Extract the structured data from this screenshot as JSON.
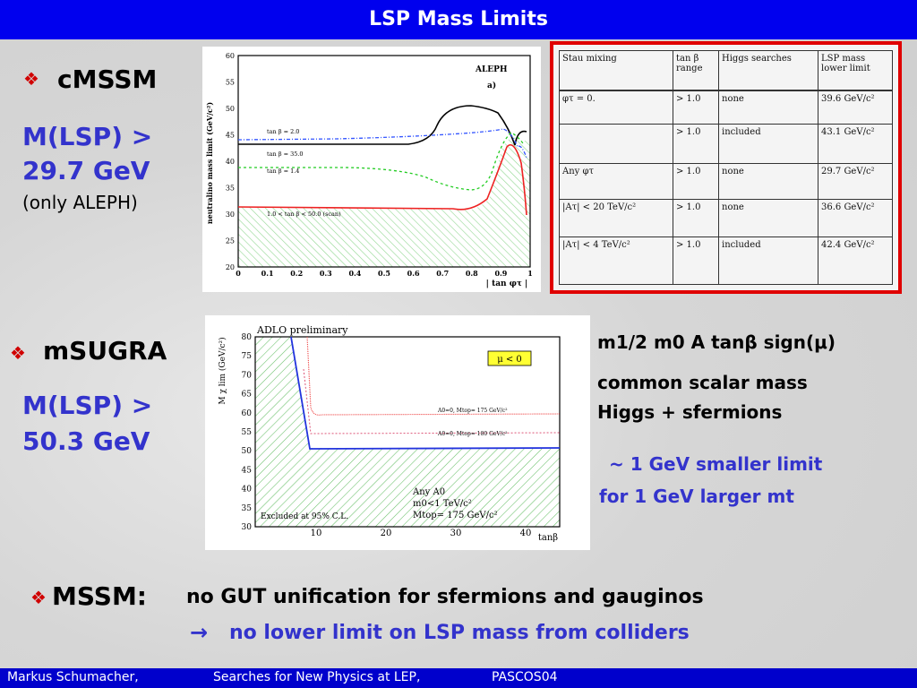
{
  "title": "LSP Mass Limits",
  "cmssm": {
    "label": "cMSSM",
    "limit_line1": "M(LSP) >",
    "limit_line2": "29.7 GeV",
    "note": "(only ALEPH)"
  },
  "msugra": {
    "label": "mSUGRA",
    "limit_line1": "M(LSP) >",
    "limit_line2": "50.3 GeV"
  },
  "params": {
    "line1": "m1/2  m0  A  tanβ sign(μ)",
    "line2": "common scalar mass",
    "line3": "Higgs + sfermions"
  },
  "shift": {
    "line1": "~ 1 GeV smaller limit",
    "line2": "for 1 GeV larger mt"
  },
  "mssm": {
    "label": "MSSM:",
    "text": "no GUT unification for sfermions and gauginos",
    "arrow": "→",
    "conclusion": "no lower limit on LSP mass from colliders"
  },
  "footer": {
    "author": "Markus  Schumacher,",
    "talk": "Searches for New Physics at LEP,",
    "conf": "PASCOS04"
  },
  "aleph_plot": {
    "tag": "ALEPH",
    "panel": "a)",
    "ylabel": "neutralino mass limit (GeV/c²)",
    "xlabel": "| tan φτ |",
    "yticks": [
      "20",
      "25",
      "30",
      "35",
      "40",
      "45",
      "50",
      "55",
      "60"
    ],
    "xticks": [
      "0",
      "0.1",
      "0.2",
      "0.3",
      "0.4",
      "0.5",
      "0.6",
      "0.7",
      "0.8",
      "0.9",
      "1"
    ],
    "curve_labels": [
      "tan β = 2.0",
      "tan β = 35.0",
      "tan β = 1.4",
      "1.0 < tan β < 50.0 (scan)"
    ]
  },
  "adlo_plot": {
    "tag": "ADLO preliminary",
    "mu": "μ < 0",
    "ylabel": "M χ lim (GeV/c²)",
    "xlabel": "tanβ",
    "yticks": [
      "30",
      "35",
      "40",
      "45",
      "50",
      "55",
      "60",
      "65",
      "70",
      "75",
      "80"
    ],
    "xticks": [
      "10",
      "20",
      "30",
      "40"
    ],
    "curve_labels": [
      "A0=0, Mtop= 175 GeV/c²",
      "A0=0, Mtop= 180 GeV/c²"
    ],
    "excluded": "Excluded at 95% C.L.",
    "cond1": "Any A0",
    "cond2": "m0<1 TeV/c²",
    "cond3": "Mtop= 175 GeV/c²"
  },
  "table": {
    "headers": [
      "Stau mixing",
      "tan β range",
      "Higgs searches",
      "LSP mass lower limit"
    ],
    "rows": [
      [
        "φτ = 0.",
        "> 1.0",
        "none",
        "39.6 GeV/c²"
      ],
      [
        "",
        "> 1.0",
        "included",
        "43.1 GeV/c²"
      ],
      [
        "Any φτ",
        "> 1.0",
        "none",
        "29.7 GeV/c²"
      ],
      [
        "|Aτ| < 20 TeV/c²",
        "> 1.0",
        "none",
        "36.6 GeV/c²"
      ],
      [
        "|Aτ| < 4 TeV/c²",
        "> 1.0",
        "included",
        "42.4 GeV/c²"
      ]
    ]
  },
  "colors": {
    "header_blue": "#0000ee",
    "text_blue": "#3333cc",
    "table_border": "#e00000"
  }
}
